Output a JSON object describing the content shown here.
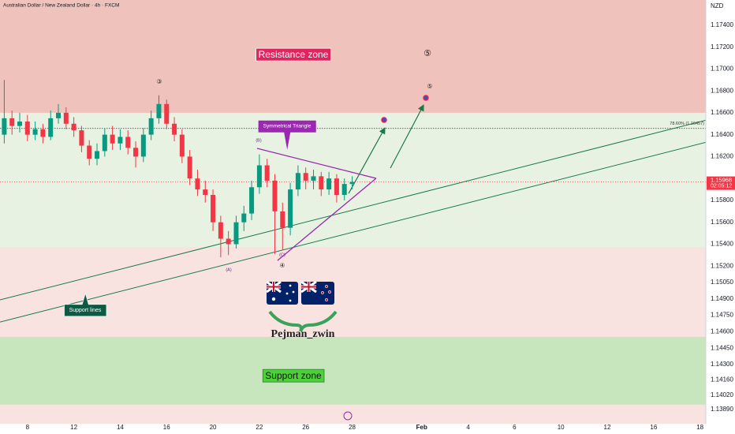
{
  "chart_data": {
    "type": "candlestick",
    "title": "Australian Dollar / New Zealand Dollar · 4h · FXCM",
    "currency": "NZD",
    "x": [
      -6,
      -4,
      -2,
      0,
      2,
      4,
      6,
      8,
      10,
      12,
      14,
      16,
      18,
      20,
      22,
      24,
      26,
      28,
      30,
      32,
      34,
      36,
      38,
      40,
      42,
      44,
      46,
      48,
      50,
      52,
      54,
      56,
      58,
      60,
      62,
      64,
      66,
      68,
      70,
      72,
      74,
      76,
      78,
      80,
      82,
      84
    ],
    "open": [
      1.164,
      1.1655,
      1.1648,
      1.1652,
      1.164,
      1.1645,
      1.1638,
      1.1655,
      1.166,
      1.165,
      1.1644,
      1.163,
      1.1618,
      1.1625,
      1.164,
      1.1632,
      1.1638,
      1.1628,
      1.162,
      1.164,
      1.1655,
      1.1668,
      1.165,
      1.164,
      1.162,
      1.16,
      1.159,
      1.1585,
      1.156,
      1.1545,
      1.154,
      1.156,
      1.1568,
      1.1592,
      1.1612,
      1.1598,
      1.157,
      1.1555,
      1.159,
      1.1605,
      1.1598,
      1.1602,
      1.159,
      1.16,
      1.1585,
      1.1595
    ],
    "high": [
      1.169,
      1.1662,
      1.166,
      1.1658,
      1.1652,
      1.165,
      1.1662,
      1.1668,
      1.1665,
      1.1656,
      1.1648,
      1.1635,
      1.1632,
      1.1646,
      1.1648,
      1.1645,
      1.1644,
      1.1634,
      1.1646,
      1.1662,
      1.1676,
      1.1672,
      1.1656,
      1.1645,
      1.1626,
      1.1608,
      1.1598,
      1.159,
      1.1566,
      1.1552,
      1.1566,
      1.1575,
      1.1598,
      1.1622,
      1.1618,
      1.1604,
      1.1578,
      1.1596,
      1.1612,
      1.161,
      1.1608,
      1.1606,
      1.1606,
      1.1604,
      1.16,
      1.1602
    ],
    "low": [
      1.1632,
      1.164,
      1.1642,
      1.1634,
      1.1635,
      1.1632,
      1.1635,
      1.165,
      1.1645,
      1.1638,
      1.1624,
      1.1612,
      1.1612,
      1.162,
      1.1626,
      1.1626,
      1.1622,
      1.161,
      1.1615,
      1.1635,
      1.165,
      1.1645,
      1.1634,
      1.1614,
      1.1594,
      1.1584,
      1.1578,
      1.1552,
      1.1528,
      1.153,
      1.1536,
      1.1552,
      1.1562,
      1.1586,
      1.1592,
      1.1531,
      1.1535,
      1.1548,
      1.1584,
      1.159,
      1.159,
      1.1584,
      1.1585,
      1.1578,
      1.158,
      1.159
    ],
    "close": [
      1.1655,
      1.1648,
      1.1652,
      1.164,
      1.1645,
      1.1638,
      1.1655,
      1.166,
      1.165,
      1.1644,
      1.163,
      1.1618,
      1.1625,
      1.164,
      1.1632,
      1.1638,
      1.1628,
      1.162,
      1.164,
      1.1655,
      1.1668,
      1.165,
      1.164,
      1.162,
      1.16,
      1.159,
      1.1585,
      1.156,
      1.1545,
      1.154,
      1.156,
      1.1568,
      1.1592,
      1.1612,
      1.1598,
      1.157,
      1.1555,
      1.159,
      1.1605,
      1.1598,
      1.1602,
      1.159,
      1.16,
      1.1585,
      1.1595,
      1.15968
    ],
    "up_color": "#089981",
    "down_color": "#f23645",
    "countdown": "02:05:12",
    "xlim": [
      -7.1,
      175.5
    ],
    "ylim": [
      1.1376,
      1.1763
    ],
    "xticks": [
      {
        "value": 0,
        "label": "8"
      },
      {
        "value": 12,
        "label": "12"
      },
      {
        "value": 24,
        "label": "14"
      },
      {
        "value": 36,
        "label": "16"
      },
      {
        "value": 48,
        "label": "20"
      },
      {
        "value": 60,
        "label": "22"
      },
      {
        "value": 72,
        "label": "26"
      },
      {
        "value": 84,
        "label": "28"
      },
      {
        "value": 102,
        "label": "Feb"
      },
      {
        "value": 114,
        "label": "4"
      },
      {
        "value": 126,
        "label": "6"
      },
      {
        "value": 138,
        "label": "10"
      },
      {
        "value": 150,
        "label": "12"
      },
      {
        "value": 162,
        "label": "16"
      },
      {
        "value": 174,
        "label": "18"
      }
    ],
    "yticks": [
      {
        "value": 1.174,
        "label": "1.17400"
      },
      {
        "value": 1.172,
        "label": "1.17200"
      },
      {
        "value": 1.17,
        "label": "1.17000"
      },
      {
        "value": 1.168,
        "label": "1.16800"
      },
      {
        "value": 1.166,
        "label": "1.16600"
      },
      {
        "value": 1.164,
        "label": "1.16400"
      },
      {
        "value": 1.162,
        "label": "1.16200"
      },
      {
        "value": 1.158,
        "label": "1.15800"
      },
      {
        "value": 1.156,
        "label": "1.15600"
      },
      {
        "value": 1.154,
        "label": "1.15400"
      },
      {
        "value": 1.152,
        "label": "1.15200"
      },
      {
        "value": 1.1505,
        "label": "1.15050"
      },
      {
        "value": 1.149,
        "label": "1.14900"
      },
      {
        "value": 1.1475,
        "label": "1.14750"
      },
      {
        "value": 1.146,
        "label": "1.14600"
      },
      {
        "value": 1.1445,
        "label": "1.14450"
      },
      {
        "value": 1.143,
        "label": "1.14300"
      },
      {
        "value": 1.1416,
        "label": "1.14160"
      },
      {
        "value": 1.1402,
        "label": "1.14020"
      },
      {
        "value": 1.1389,
        "label": "1.13890"
      }
    ],
    "fib_level": {
      "value": 1.16457,
      "label": "78.60% (1.16457)"
    },
    "zones": [
      {
        "label": "Resistance zone",
        "from": 1.166,
        "to": 1.1763,
        "color": "#efc3bb",
        "label_color": "#e0245e"
      },
      {
        "label": "Support zone",
        "from": 1.13935,
        "to": 1.14553,
        "color": "#c8e6bd",
        "label_color": "#4cd137"
      }
    ],
    "support_lines": [
      {
        "x": [
          -7.1,
          175.5
        ],
        "y": [
          1.14891,
          1.16532
        ],
        "color": "#1b7a4a"
      },
      {
        "x": [
          -7.1,
          175.5
        ],
        "y": [
          1.14689,
          1.1633
        ],
        "color": "#1b7a4a"
      }
    ],
    "triangle": {
      "label": "Symmetrical Triangle",
      "color": "#9c27b0",
      "lines": [
        {
          "x": [
            59.4,
            90.2
          ],
          "y": [
            1.16275,
            1.16001
          ]
        },
        {
          "x": [
            64.7,
            90.2
          ],
          "y": [
            1.15251,
            1.16001
          ]
        }
      ]
    },
    "arrows": [
      {
        "x": [
          83.1,
          92.5
        ],
        "y": [
          1.15864,
          1.16463
        ],
        "color": "#1b7a4a"
      },
      {
        "x": [
          93.9,
          102.5
        ],
        "y": [
          1.16095,
          1.16672
        ],
        "color": "#1b7a4a"
      }
    ],
    "support_lines_label": "Support lines",
    "wave_labels": [
      "③",
      "④",
      "⑤",
      "⑤",
      "(A)",
      "(B)",
      "(C)"
    ],
    "author": "Pejman_zwin"
  }
}
